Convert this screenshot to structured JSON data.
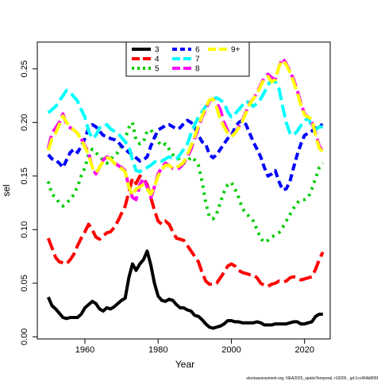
{
  "chart_data": {
    "type": "line",
    "xlabel": "Year",
    "ylabel": "sel",
    "xlim": [
      1947,
      2027
    ],
    "ylim": [
      -0.002,
      0.275
    ],
    "x_ticks": [
      1960,
      1980,
      2000,
      2020
    ],
    "x_tick_labels": [
      "1960",
      "1980",
      "2000",
      "2020"
    ],
    "y_ticks": [
      0.0,
      0.05,
      0.1,
      0.15,
      0.2,
      0.25
    ],
    "y_tick_labels": [
      "0.00",
      "0.05",
      "0.10",
      "0.15",
      "0.20",
      "0.25"
    ],
    "grid": false,
    "legend_position": "top-center",
    "series": [
      {
        "name": "3",
        "color": "#000000",
        "dash": "solid",
        "x": [
          1950,
          1951,
          1952,
          1953,
          1954,
          1955,
          1956,
          1957,
          1958,
          1959,
          1960,
          1961,
          1962,
          1963,
          1964,
          1965,
          1966,
          1967,
          1968,
          1969,
          1970,
          1971,
          1972,
          1973,
          1974,
          1975,
          1976,
          1977,
          1978,
          1979,
          1980,
          1981,
          1982,
          1983,
          1984,
          1985,
          1986,
          1987,
          1988,
          1989,
          1990,
          1991,
          1992,
          1993,
          1994,
          1995,
          1996,
          1997,
          1998,
          1999,
          2000,
          2001,
          2002,
          2003,
          2004,
          2005,
          2006,
          2007,
          2008,
          2009,
          2010,
          2011,
          2012,
          2013,
          2014,
          2015,
          2016,
          2017,
          2018,
          2019,
          2020,
          2021,
          2022,
          2023,
          2024,
          2025
        ],
        "y": [
          0.037,
          0.029,
          0.026,
          0.022,
          0.018,
          0.017,
          0.018,
          0.018,
          0.018,
          0.021,
          0.027,
          0.03,
          0.033,
          0.031,
          0.026,
          0.024,
          0.027,
          0.026,
          0.028,
          0.031,
          0.034,
          0.036,
          0.055,
          0.068,
          0.062,
          0.068,
          0.072,
          0.08,
          0.067,
          0.05,
          0.038,
          0.034,
          0.033,
          0.035,
          0.034,
          0.03,
          0.027,
          0.027,
          0.025,
          0.024,
          0.02,
          0.019,
          0.016,
          0.012,
          0.009,
          0.008,
          0.009,
          0.01,
          0.012,
          0.015,
          0.015,
          0.014,
          0.014,
          0.013,
          0.013,
          0.013,
          0.013,
          0.014,
          0.013,
          0.011,
          0.011,
          0.011,
          0.012,
          0.012,
          0.012,
          0.012,
          0.013,
          0.014,
          0.014,
          0.012,
          0.012,
          0.013,
          0.014,
          0.019,
          0.021,
          0.021
        ]
      },
      {
        "name": "4",
        "color": "#ff0000",
        "dash": "longdash",
        "x": [
          1950,
          1951,
          1952,
          1953,
          1954,
          1955,
          1956,
          1957,
          1958,
          1959,
          1960,
          1961,
          1962,
          1963,
          1964,
          1965,
          1966,
          1967,
          1968,
          1969,
          1970,
          1971,
          1972,
          1973,
          1974,
          1975,
          1976,
          1977,
          1978,
          1979,
          1980,
          1981,
          1982,
          1983,
          1984,
          1985,
          1986,
          1987,
          1988,
          1989,
          1990,
          1991,
          1992,
          1993,
          1994,
          1995,
          1996,
          1997,
          1998,
          1999,
          2000,
          2001,
          2002,
          2003,
          2004,
          2005,
          2006,
          2007,
          2008,
          2009,
          2010,
          2011,
          2012,
          2013,
          2014,
          2015,
          2016,
          2017,
          2018,
          2019,
          2020,
          2021,
          2022,
          2023,
          2024,
          2025
        ],
        "y": [
          0.092,
          0.083,
          0.074,
          0.07,
          0.069,
          0.068,
          0.072,
          0.077,
          0.085,
          0.092,
          0.098,
          0.105,
          0.1,
          0.093,
          0.091,
          0.094,
          0.097,
          0.098,
          0.102,
          0.108,
          0.115,
          0.122,
          0.135,
          0.148,
          0.143,
          0.15,
          0.148,
          0.142,
          0.13,
          0.118,
          0.108,
          0.105,
          0.108,
          0.105,
          0.098,
          0.092,
          0.091,
          0.09,
          0.085,
          0.08,
          0.075,
          0.07,
          0.06,
          0.052,
          0.049,
          0.049,
          0.05,
          0.055,
          0.06,
          0.066,
          0.068,
          0.066,
          0.062,
          0.06,
          0.059,
          0.058,
          0.058,
          0.055,
          0.05,
          0.048,
          0.047,
          0.049,
          0.05,
          0.052,
          0.051,
          0.052,
          0.055,
          0.056,
          0.055,
          0.053,
          0.054,
          0.055,
          0.056,
          0.063,
          0.072,
          0.079
        ]
      },
      {
        "name": "5",
        "color": "#00cd00",
        "dash": "dotted",
        "x": [
          1950,
          1951,
          1952,
          1953,
          1954,
          1955,
          1956,
          1957,
          1958,
          1959,
          1960,
          1961,
          1962,
          1963,
          1964,
          1965,
          1966,
          1967,
          1968,
          1969,
          1970,
          1971,
          1972,
          1973,
          1974,
          1975,
          1976,
          1977,
          1978,
          1979,
          1980,
          1981,
          1982,
          1983,
          1984,
          1985,
          1986,
          1987,
          1988,
          1989,
          1990,
          1991,
          1992,
          1993,
          1994,
          1995,
          1996,
          1997,
          1998,
          1999,
          2000,
          2001,
          2002,
          2003,
          2004,
          2005,
          2006,
          2007,
          2008,
          2009,
          2010,
          2011,
          2012,
          2013,
          2014,
          2015,
          2016,
          2017,
          2018,
          2019,
          2020,
          2021,
          2022,
          2023,
          2024,
          2025
        ],
        "y": [
          0.145,
          0.133,
          0.13,
          0.125,
          0.122,
          0.125,
          0.128,
          0.133,
          0.14,
          0.15,
          0.158,
          0.17,
          0.175,
          0.172,
          0.168,
          0.165,
          0.162,
          0.165,
          0.17,
          0.172,
          0.178,
          0.185,
          0.195,
          0.2,
          0.183,
          0.18,
          0.182,
          0.192,
          0.193,
          0.188,
          0.182,
          0.178,
          0.18,
          0.175,
          0.17,
          0.168,
          0.165,
          0.162,
          0.163,
          0.168,
          0.165,
          0.16,
          0.145,
          0.125,
          0.112,
          0.11,
          0.115,
          0.125,
          0.135,
          0.142,
          0.144,
          0.138,
          0.13,
          0.12,
          0.115,
          0.112,
          0.108,
          0.1,
          0.092,
          0.088,
          0.09,
          0.093,
          0.095,
          0.097,
          0.102,
          0.108,
          0.114,
          0.12,
          0.125,
          0.128,
          0.128,
          0.13,
          0.138,
          0.148,
          0.158,
          0.162
        ]
      },
      {
        "name": "6",
        "color": "#0000ff",
        "dash": "dashed",
        "x": [
          1950,
          1951,
          1952,
          1953,
          1954,
          1955,
          1956,
          1957,
          1958,
          1959,
          1960,
          1961,
          1962,
          1963,
          1964,
          1965,
          1966,
          1967,
          1968,
          1969,
          1970,
          1971,
          1972,
          1973,
          1974,
          1975,
          1976,
          1977,
          1978,
          1979,
          1980,
          1981,
          1982,
          1983,
          1984,
          1985,
          1986,
          1987,
          1988,
          1989,
          1990,
          1991,
          1992,
          1993,
          1994,
          1995,
          1996,
          1997,
          1998,
          1999,
          2000,
          2001,
          2002,
          2003,
          2004,
          2005,
          2006,
          2007,
          2008,
          2009,
          2010,
          2011,
          2012,
          2013,
          2014,
          2015,
          2016,
          2017,
          2018,
          2019,
          2020,
          2021,
          2022,
          2023,
          2024,
          2025
        ],
        "y": [
          0.17,
          0.166,
          0.165,
          0.162,
          0.158,
          0.165,
          0.172,
          0.175,
          0.172,
          0.178,
          0.185,
          0.195,
          0.198,
          0.196,
          0.192,
          0.188,
          0.187,
          0.185,
          0.184,
          0.182,
          0.178,
          0.175,
          0.172,
          0.17,
          0.167,
          0.164,
          0.165,
          0.168,
          0.178,
          0.186,
          0.193,
          0.195,
          0.197,
          0.198,
          0.196,
          0.194,
          0.195,
          0.199,
          0.202,
          0.2,
          0.195,
          0.188,
          0.182,
          0.18,
          0.17,
          0.167,
          0.17,
          0.175,
          0.18,
          0.185,
          0.188,
          0.195,
          0.2,
          0.202,
          0.198,
          0.19,
          0.182,
          0.175,
          0.168,
          0.158,
          0.15,
          0.152,
          0.155,
          0.145,
          0.137,
          0.138,
          0.145,
          0.158,
          0.17,
          0.18,
          0.188,
          0.19,
          0.192,
          0.195,
          0.197,
          0.198
        ]
      },
      {
        "name": "7",
        "color": "#00ffff",
        "dash": "longdash",
        "x": [
          1950,
          1951,
          1952,
          1953,
          1954,
          1955,
          1956,
          1957,
          1958,
          1959,
          1960,
          1961,
          1962,
          1963,
          1964,
          1965,
          1966,
          1967,
          1968,
          1969,
          1970,
          1971,
          1972,
          1973,
          1974,
          1975,
          1976,
          1977,
          1978,
          1979,
          1980,
          1981,
          1982,
          1983,
          1984,
          1985,
          1986,
          1987,
          1988,
          1989,
          1990,
          1991,
          1992,
          1993,
          1994,
          1995,
          1996,
          1997,
          1998,
          1999,
          2000,
          2001,
          2002,
          2003,
          2004,
          2005,
          2006,
          2007,
          2008,
          2009,
          2010,
          2011,
          2012,
          2013,
          2014,
          2015,
          2016,
          2017,
          2018,
          2019,
          2020,
          2021,
          2022,
          2023,
          2024,
          2025
        ],
        "y": [
          0.209,
          0.212,
          0.215,
          0.22,
          0.225,
          0.23,
          0.228,
          0.224,
          0.22,
          0.212,
          0.205,
          0.192,
          0.185,
          0.188,
          0.195,
          0.195,
          0.198,
          0.194,
          0.192,
          0.19,
          0.186,
          0.182,
          0.178,
          0.165,
          0.155,
          0.154,
          0.157,
          0.158,
          0.16,
          0.163,
          0.165,
          0.164,
          0.166,
          0.168,
          0.166,
          0.166,
          0.17,
          0.175,
          0.18,
          0.19,
          0.198,
          0.205,
          0.21,
          0.215,
          0.218,
          0.222,
          0.223,
          0.221,
          0.218,
          0.21,
          0.205,
          0.208,
          0.212,
          0.216,
          0.22,
          0.218,
          0.215,
          0.218,
          0.222,
          0.228,
          0.235,
          0.24,
          0.238,
          0.232,
          0.215,
          0.2,
          0.19,
          0.188,
          0.192,
          0.197,
          0.201,
          0.205,
          0.196,
          0.193,
          0.196,
          0.196
        ]
      },
      {
        "name": "8",
        "color": "#ff00ff",
        "dash": "longdash",
        "x": [
          1950,
          1951,
          1952,
          1953,
          1954,
          1955,
          1956,
          1957,
          1958,
          1959,
          1960,
          1961,
          1962,
          1963,
          1964,
          1965,
          1966,
          1967,
          1968,
          1969,
          1970,
          1971,
          1972,
          1973,
          1974,
          1975,
          1976,
          1977,
          1978,
          1979,
          1980,
          1981,
          1982,
          1983,
          1984,
          1985,
          1986,
          1987,
          1988,
          1989,
          1990,
          1991,
          1992,
          1993,
          1994,
          1995,
          1996,
          1997,
          1998,
          1999,
          2000,
          2001,
          2002,
          2003,
          2004,
          2005,
          2006,
          2007,
          2008,
          2009,
          2010,
          2011,
          2012,
          2013,
          2014,
          2015,
          2016,
          2017,
          2018,
          2019,
          2020,
          2021,
          2022,
          2023,
          2024,
          2025
        ],
        "y": [
          0.176,
          0.19,
          0.195,
          0.2,
          0.208,
          0.198,
          0.195,
          0.193,
          0.19,
          0.185,
          0.178,
          0.172,
          0.158,
          0.152,
          0.158,
          0.165,
          0.168,
          0.166,
          0.163,
          0.16,
          0.158,
          0.155,
          0.14,
          0.13,
          0.128,
          0.142,
          0.148,
          0.14,
          0.13,
          0.14,
          0.152,
          0.158,
          0.162,
          0.16,
          0.157,
          0.156,
          0.158,
          0.162,
          0.168,
          0.175,
          0.185,
          0.195,
          0.205,
          0.212,
          0.22,
          0.222,
          0.218,
          0.212,
          0.2,
          0.192,
          0.188,
          0.19,
          0.196,
          0.202,
          0.21,
          0.218,
          0.222,
          0.228,
          0.235,
          0.242,
          0.245,
          0.242,
          0.24,
          0.252,
          0.26,
          0.255,
          0.248,
          0.24,
          0.23,
          0.218,
          0.208,
          0.205,
          0.2,
          0.19,
          0.178,
          0.173
        ]
      },
      {
        "name": "9+",
        "color": "#ffff00",
        "dash": "longdash",
        "x": [
          1950,
          1951,
          1952,
          1953,
          1954,
          1955,
          1956,
          1957,
          1958,
          1959,
          1960,
          1961,
          1962,
          1963,
          1964,
          1965,
          1966,
          1967,
          1968,
          1969,
          1970,
          1971,
          1972,
          1973,
          1974,
          1975,
          1976,
          1977,
          1978,
          1979,
          1980,
          1981,
          1982,
          1983,
          1984,
          1985,
          1986,
          1987,
          1988,
          1989,
          1990,
          1991,
          1992,
          1993,
          1994,
          1995,
          1996,
          1997,
          1998,
          1999,
          2000,
          2001,
          2002,
          2003,
          2004,
          2005,
          2006,
          2007,
          2008,
          2009,
          2010,
          2011,
          2012,
          2013,
          2014,
          2015,
          2016,
          2017,
          2018,
          2019,
          2020,
          2021,
          2022,
          2023,
          2024,
          2025
        ],
        "y": [
          0.174,
          0.185,
          0.19,
          0.198,
          0.206,
          0.2,
          0.196,
          0.193,
          0.19,
          0.184,
          0.177,
          0.17,
          0.158,
          0.153,
          0.158,
          0.164,
          0.167,
          0.166,
          0.162,
          0.159,
          0.157,
          0.154,
          0.14,
          0.132,
          0.138,
          0.14,
          0.142,
          0.138,
          0.133,
          0.14,
          0.15,
          0.156,
          0.16,
          0.16,
          0.157,
          0.158,
          0.16,
          0.163,
          0.17,
          0.178,
          0.187,
          0.197,
          0.206,
          0.214,
          0.221,
          0.222,
          0.214,
          0.203,
          0.196,
          0.19,
          0.187,
          0.19,
          0.195,
          0.201,
          0.209,
          0.217,
          0.222,
          0.227,
          0.234,
          0.241,
          0.243,
          0.238,
          0.24,
          0.252,
          0.258,
          0.254,
          0.247,
          0.238,
          0.228,
          0.216,
          0.207,
          0.205,
          0.203,
          0.188,
          0.176,
          0.173
        ]
      }
    ]
  },
  "source_text": "stockassessment.org, NEA2025_spatioTemporal, r19255 , git:1cc464b806f"
}
